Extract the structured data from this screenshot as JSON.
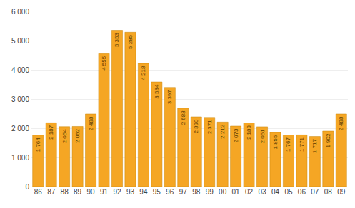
{
  "chart_data": {
    "type": "bar",
    "categories": [
      "86",
      "87",
      "88",
      "89",
      "90",
      "91",
      "92",
      "93",
      "94",
      "95",
      "96",
      "97",
      "98",
      "99",
      "00",
      "01",
      "02",
      "03",
      "04",
      "05",
      "06",
      "07",
      "08",
      "09"
    ],
    "values": [
      1764,
      2187,
      2054,
      2062,
      2488,
      4555,
      5353,
      5285,
      4218,
      3584,
      3397,
      2688,
      2390,
      2371,
      2212,
      2073,
      2183,
      2051,
      1855,
      1767,
      1771,
      1717,
      1902,
      2488
    ],
    "value_labels": [
      "1 764",
      "2 187",
      "2 054",
      "2 062",
      "2 488",
      "4 555",
      "5 353",
      "5 285",
      "4 218",
      "3 584",
      "3 397",
      "2 688",
      "2 390",
      "2 371",
      "2 212",
      "2 073",
      "2 183",
      "2 051",
      "1 855",
      "1 767",
      "1 771",
      "1 717",
      "1 902",
      "2 488"
    ],
    "data_labels": true,
    "color": "#F5A624",
    "ylim": [
      0,
      6000
    ],
    "yticks": [
      0,
      {
        "value": 1000,
        "label": "1 000"
      },
      {
        "value": 2000,
        "label": "2 000"
      },
      {
        "value": 3000,
        "label": "3 000"
      },
      {
        "value": 4000,
        "label": "4 000"
      },
      {
        "value": 5000,
        "label": "5 000"
      },
      {
        "value": 6000,
        "label": "6 000"
      }
    ],
    "grid": true
  }
}
